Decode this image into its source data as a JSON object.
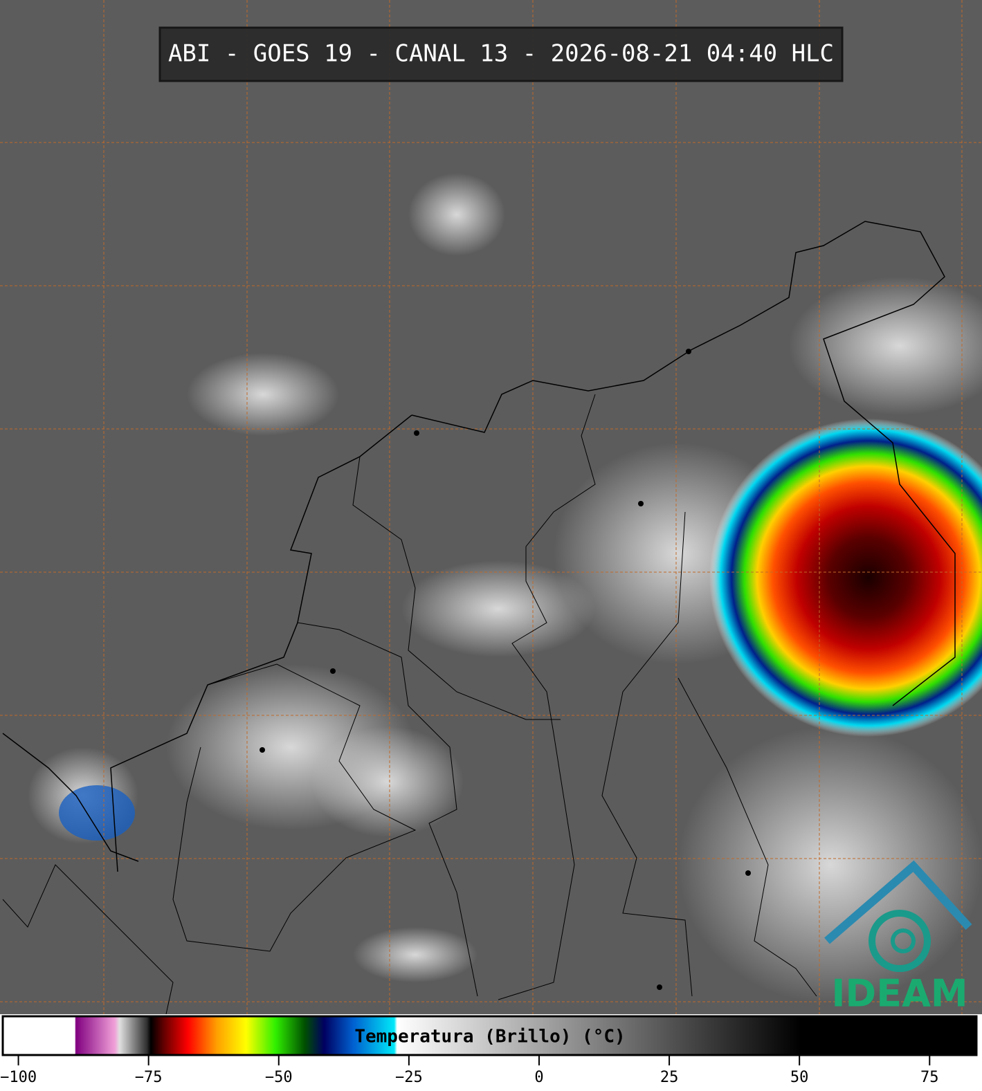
{
  "title": "ABI - GOES 19 - CANAL 13 - 2026-08-21 04:40 HLC",
  "colorbar": {
    "label": "Temperatura (Brillo) (°C)",
    "range": [
      -103,
      84
    ],
    "ticks": [
      {
        "value": -100,
        "label": "−100"
      },
      {
        "value": -75,
        "label": "−75"
      },
      {
        "value": -50,
        "label": "−50"
      },
      {
        "value": -25,
        "label": "−25"
      },
      0,
      25,
      50,
      75
    ]
  },
  "logo": "IDEAM"
}
